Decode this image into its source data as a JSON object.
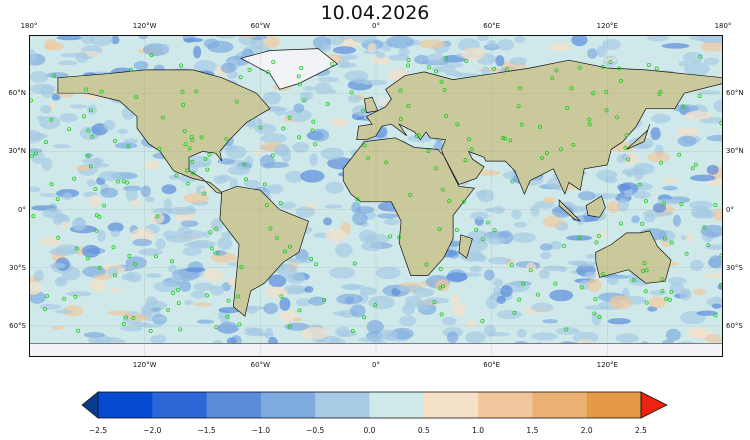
{
  "title": "10.04.2026",
  "lon_labels": [
    "180°",
    "120°W",
    "60°W",
    "0°",
    "60°E",
    "120°E",
    "180°"
  ],
  "lon_values": [
    -180,
    -120,
    -60,
    0,
    60,
    120,
    180
  ],
  "lat_labels": [
    "60°N",
    "30°N",
    "0°",
    "30°S",
    "60°S"
  ],
  "lat_values": [
    60,
    30,
    0,
    -30,
    -60
  ],
  "map_extent": {
    "lon": [
      -180,
      180
    ],
    "lat": [
      -76,
      90
    ]
  },
  "colorbar": {
    "ticks": [
      "−2.5",
      "−2.0",
      "−1.5",
      "−1.0",
      "−0.5",
      "0.0",
      "0.5",
      "1.0",
      "1.5",
      "2.0",
      "2.5"
    ],
    "tick_values": [
      -2.5,
      -2.0,
      -1.5,
      -1.0,
      -0.5,
      0.0,
      0.5,
      1.0,
      1.5,
      2.0,
      2.5
    ],
    "colors": [
      "#0449cf",
      "#2b67d6",
      "#5a8cdb",
      "#7fabe0",
      "#a7cbe4",
      "#d0eaea",
      "#f5e0c8",
      "#f0c79c",
      "#ebb174",
      "#e59a45"
    ],
    "under_color": "#0b3a8c",
    "over_color": "#ee2211",
    "extend": "both"
  },
  "colors": {
    "ocean": "#cfe9ea",
    "land": "#c9c99b",
    "ice": "#f2f3f6",
    "marker": "#22cc22"
  }
}
